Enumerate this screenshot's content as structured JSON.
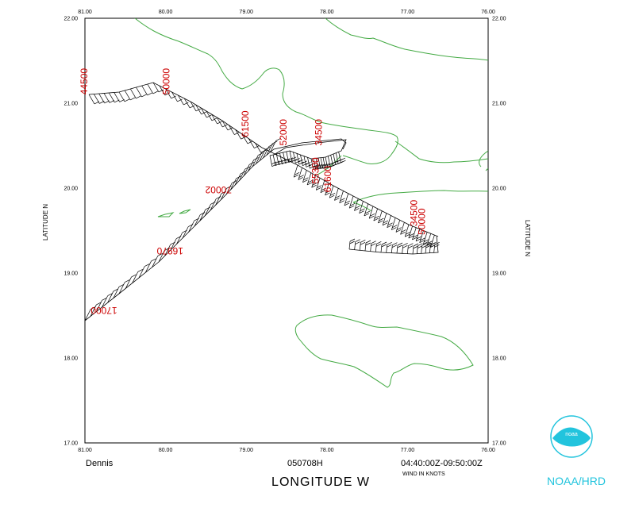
{
  "map": {
    "lon_range": [
      81.0,
      76.0
    ],
    "lat_range": [
      17.0,
      22.0
    ],
    "lon_ticks": [
      "81.00",
      "80.00",
      "79.00",
      "78.00",
      "77.00",
      "76.00"
    ],
    "lat_ticks": [
      "17.00",
      "18.00",
      "19.00",
      "20.00",
      "21.00",
      "22.00"
    ],
    "xlabel": "LONGITUDE   W",
    "ylabel_left": "LATITUDE   N",
    "ylabel_right": "LATITUDE   N",
    "storm_name": "Dennis",
    "date": "050708H",
    "time_range": "04:40:00Z-09:50:00Z",
    "units_note": "WIND IN KNOTS",
    "coast_color": "#44aa44",
    "altitude_color": "#cc0000"
  },
  "altitude_labels": [
    {
      "text": "44500",
      "lon": 80.97,
      "lat": 21.1,
      "rot": -90
    },
    {
      "text": "50000",
      "lon": 79.95,
      "lat": 21.1,
      "rot": -90
    },
    {
      "text": "61500",
      "lon": 78.97,
      "lat": 20.6,
      "rot": -90
    },
    {
      "text": "52000",
      "lon": 78.5,
      "lat": 20.5,
      "rot": -90
    },
    {
      "text": "34500",
      "lon": 78.06,
      "lat": 20.5,
      "rot": -90
    },
    {
      "text": "55300",
      "lon": 78.1,
      "lat": 20.05,
      "rot": -90
    },
    {
      "text": "61600",
      "lon": 77.95,
      "lat": 19.95,
      "rot": -90
    },
    {
      "text": "34500",
      "lon": 76.88,
      "lat": 19.55,
      "rot": -90
    },
    {
      "text": "50000",
      "lon": 76.78,
      "lat": 19.45,
      "rot": -90
    },
    {
      "text": "70002",
      "lon": 79.18,
      "lat": 20.02,
      "rot": 180
    },
    {
      "text": "16970",
      "lon": 79.78,
      "lat": 19.3,
      "rot": 180
    },
    {
      "text": "17000",
      "lon": 80.6,
      "lat": 18.6,
      "rot": 180
    }
  ],
  "logo": {
    "label": "NOAA/HRD",
    "badge": "noaa"
  }
}
